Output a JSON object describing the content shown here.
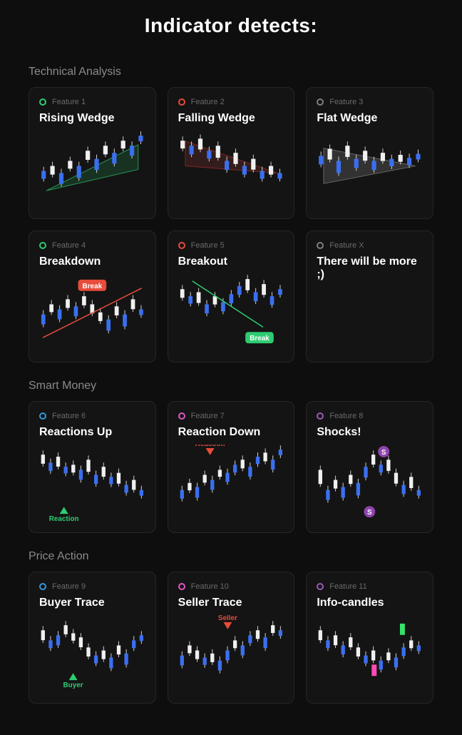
{
  "page": {
    "title": "Indicator detects:"
  },
  "colors": {
    "green": "#2ecc71",
    "red": "#e74c3c",
    "gray": "#7f7f7f",
    "blue": "#3498db",
    "magenta": "#e056c5",
    "purple": "#9b59b6",
    "candle_blue": "#3a6ff0",
    "candle_white": "#f0f0f0",
    "wick": "#d0d0d0",
    "pink": "#ff4db8",
    "bright_green": "#36e36b"
  },
  "sections": [
    {
      "title": "Technical Analysis",
      "cards": [
        {
          "id": "rising-wedge",
          "label": "Feature 1",
          "title": "Rising Wedge",
          "dot_color": "#2ecc71",
          "wedge_fill": "#1a4028",
          "wedge_stroke": "#2ecc71"
        },
        {
          "id": "falling-wedge",
          "label": "Feature 2",
          "title": "Falling Wedge",
          "dot_color": "#e74c3c",
          "wedge_fill": "#402020",
          "wedge_stroke": "#b03030"
        },
        {
          "id": "flat-wedge",
          "label": "Feature 3",
          "title": "Flat Wedge",
          "dot_color": "#7f7f7f",
          "wedge_fill": "#404040",
          "wedge_stroke": "#888"
        },
        {
          "id": "breakdown",
          "label": "Feature 4",
          "title": "Breakdown",
          "dot_color": "#2ecc71",
          "badge": "Break",
          "badge_bg": "#e74c3c",
          "line_color": "#e74c3c"
        },
        {
          "id": "breakout",
          "label": "Feature 5",
          "title": "Breakout",
          "dot_color": "#e74c3c",
          "badge": "Break",
          "badge_bg": "#2ecc71",
          "line_color": "#2ecc71"
        },
        {
          "id": "more",
          "label": "Feature X",
          "title": "There will be more ;)",
          "dot_color": "#7f7f7f",
          "empty": true
        }
      ]
    },
    {
      "title": "Smart Money",
      "cards": [
        {
          "id": "reactions-up",
          "label": "Feature 6",
          "title": "Reactions Up",
          "dot_color": "#3498db",
          "marker_label": "Reaction",
          "marker_color": "#2ecc71",
          "marker_up": true
        },
        {
          "id": "reaction-down",
          "label": "Feature 7",
          "title": "Reaction Down",
          "dot_color": "#e056c5",
          "marker_label": "Reaction",
          "marker_color": "#e74c3c",
          "marker_up": false
        },
        {
          "id": "shocks",
          "label": "Feature 8",
          "title": "Shocks!",
          "dot_color": "#9b59b6",
          "shock_label": "S",
          "shock_bg": "#8e44ad"
        }
      ]
    },
    {
      "title": "Price Action",
      "cards": [
        {
          "id": "buyer-trace",
          "label": "Feature 9",
          "title": "Buyer Trace",
          "dot_color": "#3498db",
          "marker_label": "Buyer",
          "marker_color": "#2ecc71",
          "marker_up": true
        },
        {
          "id": "seller-trace",
          "label": "Feature 10",
          "title": "Seller Trace",
          "dot_color": "#e056c5",
          "marker_label": "Seller",
          "marker_color": "#e74c3c",
          "marker_up": false
        },
        {
          "id": "info-candles",
          "label": "Feature 11",
          "title": "Info-candles",
          "dot_color": "#9b59b6",
          "info_colors": [
            "#36e36b",
            "#ff4db8"
          ]
        }
      ]
    }
  ],
  "candle_series": {
    "wedge_up": [
      30,
      35,
      28,
      40,
      35,
      50,
      42,
      55,
      48,
      60,
      55,
      65
    ],
    "wedge_down": [
      60,
      55,
      62,
      50,
      55,
      40,
      48,
      35,
      42,
      30,
      35,
      28
    ],
    "wedge_flat": [
      45,
      52,
      40,
      55,
      42,
      50,
      40,
      48,
      42,
      46,
      43,
      47
    ],
    "breakdown": [
      30,
      40,
      35,
      45,
      38,
      48,
      40,
      32,
      25,
      38,
      30,
      45,
      35
    ],
    "breakout": [
      55,
      48,
      52,
      40,
      48,
      42,
      50,
      58,
      65,
      52,
      60,
      48,
      55
    ],
    "up_trend": [
      60,
      52,
      58,
      48,
      50,
      45,
      55,
      40,
      48,
      38,
      42,
      30,
      35,
      25
    ],
    "down_trend": [
      25,
      32,
      28,
      40,
      35,
      45,
      42,
      50,
      55,
      48,
      58,
      62,
      55,
      65
    ],
    "shocks_series": [
      45,
      25,
      35,
      28,
      40,
      32,
      48,
      60,
      50,
      55,
      42,
      30,
      38,
      25
    ],
    "buyer": [
      55,
      45,
      50,
      60,
      52,
      48,
      38,
      30,
      35,
      28,
      40,
      32,
      45,
      50
    ],
    "seller": [
      30,
      40,
      35,
      28,
      32,
      25,
      35,
      45,
      40,
      50,
      55,
      48,
      60,
      55
    ],
    "info": [
      55,
      45,
      50,
      40,
      48,
      38,
      30,
      35,
      25,
      33,
      28,
      38,
      45,
      40
    ]
  }
}
